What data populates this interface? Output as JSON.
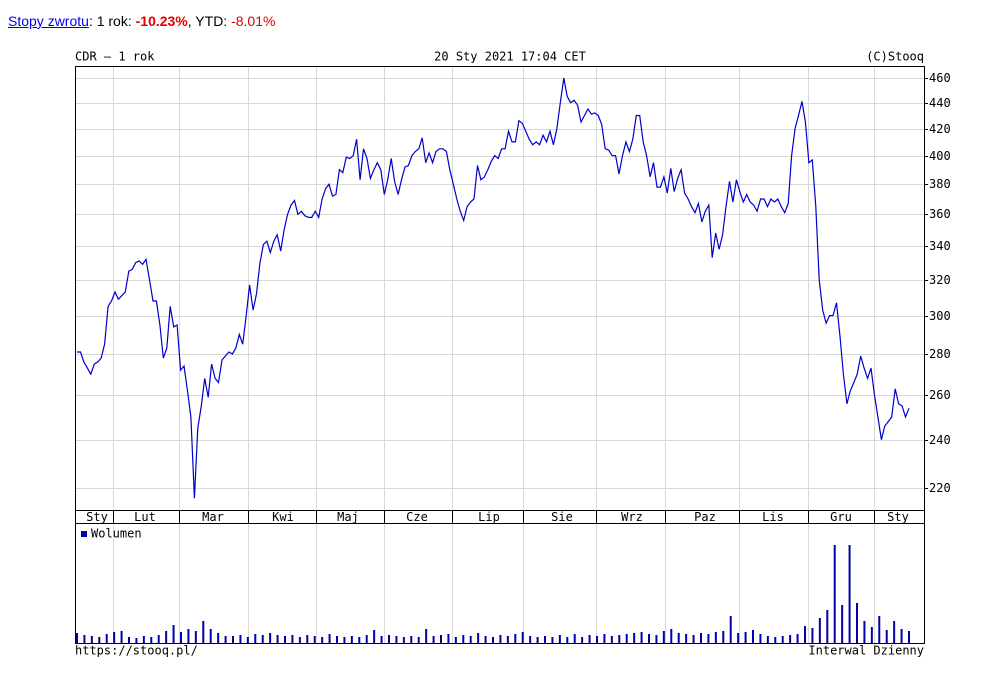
{
  "header": {
    "link": "Stopy zwrotu",
    "returns": [
      {
        "label": ": 1 rok: ",
        "value": "-10.23%"
      },
      {
        "label": ", YTD: ",
        "value": "-8.01%"
      }
    ]
  },
  "chart_data": [
    {
      "type": "line",
      "title": "CDR – 1 rok",
      "subtitle": "20 Sty 2021 17:04 CET",
      "credit": "(C)Stooq",
      "month_labels": [
        "Sty",
        "Lut",
        "Mar",
        "Kwi",
        "Maj",
        "Cze",
        "Lip",
        "Sie",
        "Wrz",
        "Paz",
        "Lis",
        "Gru",
        "Sty"
      ],
      "color": "#0000cc",
      "log_scale": true,
      "grid": true,
      "ylim": [
        211.5,
        470
      ],
      "yticks": [
        220,
        240,
        260,
        280,
        300,
        320,
        340,
        360,
        380,
        400,
        420,
        440,
        460
      ],
      "values": [
        281,
        281,
        276,
        273,
        270,
        275,
        276,
        278,
        285,
        305,
        308,
        313,
        309,
        311,
        313,
        325,
        326,
        330,
        331,
        329,
        332,
        320,
        308,
        308,
        295,
        278,
        283,
        305,
        294,
        295,
        272,
        274,
        262,
        250,
        216,
        245,
        255,
        268,
        259,
        275,
        268,
        266,
        277,
        279,
        281,
        280,
        283,
        290,
        285,
        300,
        317,
        303,
        312,
        330,
        341,
        343,
        336,
        343,
        347,
        337,
        350,
        360,
        366,
        369,
        360,
        362,
        359,
        358,
        358,
        362,
        358,
        370,
        377,
        380,
        372,
        373,
        390,
        388,
        399,
        398,
        400,
        412,
        383,
        405,
        398,
        384,
        390,
        395,
        390,
        373,
        383,
        398,
        382,
        373,
        383,
        392,
        393,
        400,
        403,
        405,
        413,
        395,
        402,
        395,
        403,
        405,
        405,
        403,
        390,
        380,
        370,
        362,
        356,
        365,
        368,
        370,
        393,
        383,
        385,
        390,
        396,
        400,
        398,
        405,
        405,
        418,
        410,
        410,
        426,
        424,
        418,
        412,
        408,
        410,
        408,
        415,
        410,
        418,
        408,
        420,
        440,
        460,
        445,
        440,
        442,
        438,
        425,
        430,
        435,
        431,
        432,
        430,
        423,
        405,
        404,
        400,
        400,
        387,
        400,
        410,
        403,
        412,
        430,
        430,
        410,
        400,
        385,
        395,
        378,
        378,
        385,
        374,
        391,
        375,
        384,
        390,
        374,
        370,
        365,
        361,
        367,
        355,
        362,
        366,
        333,
        348,
        338,
        347,
        365,
        382,
        368,
        383,
        375,
        368,
        373,
        368,
        366,
        362,
        370,
        370,
        365,
        370,
        368,
        370,
        365,
        361,
        367,
        400,
        420,
        430,
        441,
        425,
        395,
        397,
        365,
        320,
        303,
        296,
        300,
        300,
        307,
        289,
        270,
        256,
        262,
        266,
        270,
        279,
        273,
        268,
        273,
        260,
        250,
        240,
        246,
        248,
        250,
        263,
        256,
        255,
        250,
        254
      ]
    },
    {
      "type": "bar",
      "footer_left": "https://stooq.pl/",
      "footer_right": "Interwal Dzienny",
      "ylim": [
        0,
        112
      ],
      "series": [
        {
          "name": "Wolumen",
          "color": "#0000aa",
          "values": [
            10,
            8,
            7,
            6,
            9,
            11,
            12,
            6,
            5,
            7,
            6,
            8,
            12,
            18,
            11,
            14,
            12,
            22,
            14,
            10,
            7,
            7,
            8,
            6,
            9,
            8,
            10,
            8,
            7,
            8,
            6,
            8,
            7,
            6,
            9,
            7,
            6,
            7,
            6,
            8,
            13,
            7,
            8,
            7,
            6,
            7,
            6,
            14,
            7,
            8,
            9,
            6,
            8,
            7,
            10,
            7,
            6,
            8,
            7,
            9,
            11,
            7,
            6,
            7,
            6,
            8,
            6,
            9,
            6,
            8,
            7,
            9,
            7,
            8,
            9,
            10,
            11,
            9,
            8,
            12,
            14,
            10,
            9,
            8,
            10,
            9,
            11,
            12,
            27,
            10,
            11,
            13,
            9,
            7,
            6,
            7,
            8,
            9,
            17,
            15,
            25,
            33,
            98,
            38,
            98,
            40,
            22,
            16,
            27,
            13,
            22,
            14,
            12
          ]
        }
      ]
    }
  ]
}
